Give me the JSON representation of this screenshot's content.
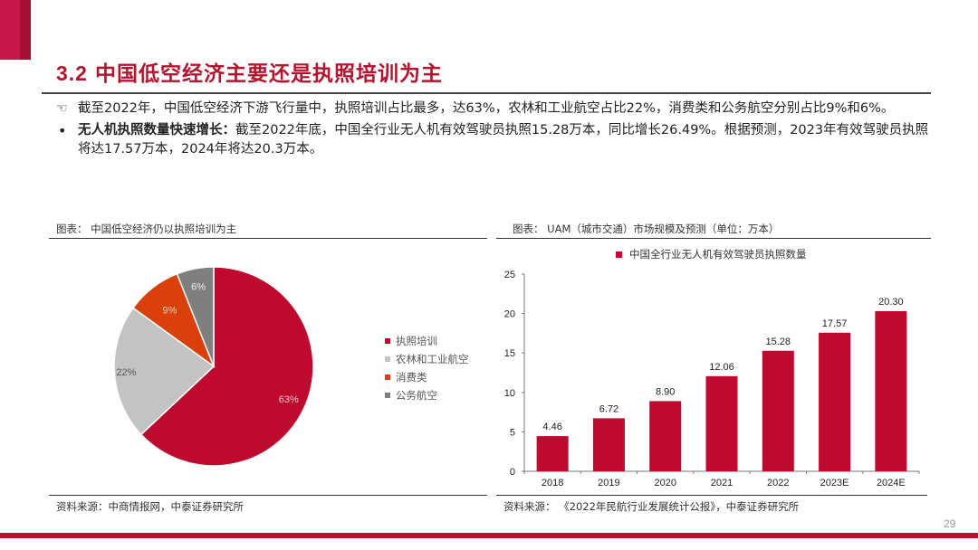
{
  "header": {
    "section_number": "3.2",
    "title": "中国低空经济主要还是执照培训为主"
  },
  "bullets": [
    {
      "marker": "hand-pointing-icon",
      "marker_glyph": "☜",
      "bold": "",
      "text": "截至2022年，中国低空经济下游飞行量中，执照培训占比最多，达63%，农林和工业航空占比22%，消费类和公务航空分别占比9%和6%。"
    },
    {
      "marker": "bullet-dot",
      "marker_glyph": "•",
      "bold": "无人机执照数量快速增长：",
      "text": "截至2022年底，中国全行业无人机有效驾驶员执照15.28万本，同比增长26.49%。根据预测，2023年有效驾驶员执照将达17.57万本，2024年将达20.3万本。"
    }
  ],
  "left_panel": {
    "title": "图表：  中国低空经济仍以执照培训为主",
    "source": "资料来源：中商情报网，中泰证券研究所"
  },
  "right_panel": {
    "title": "图表：  UAM（城市交通）市场规模及预测（单位：万本）",
    "source": "资料来源：  《2022年民航行业发展统计公报》，中泰证券研究所"
  },
  "page_number": "29",
  "colors": {
    "brand_red": "#be0a2e",
    "title_red": "#b5142e",
    "light_gray": "#c3c3c3",
    "orange": "#d9400b",
    "dark_gray": "#7f7f7f"
  },
  "chart_data": [
    {
      "type": "pie",
      "title": "中国低空经济仍以执照培训为主",
      "labels": [
        "执照培训",
        "农林和工业航空",
        "消费类",
        "公务航空"
      ],
      "values": [
        63,
        22,
        9,
        6
      ],
      "value_labels": [
        "63%",
        "22%",
        "9%",
        "6%"
      ],
      "colors": [
        "#be0a2e",
        "#c3c3c3",
        "#d9400b",
        "#7f7f7f"
      ],
      "legend_position": "right"
    },
    {
      "type": "bar",
      "title": "UAM（城市交通）市场规模及预测（单位：万本）",
      "categories": [
        "2018",
        "2019",
        "2020",
        "2021",
        "2022",
        "2023E",
        "2024E"
      ],
      "series": [
        {
          "name": "中国全行业无人机有效驾驶员执照数量",
          "values": [
            4.46,
            6.72,
            8.9,
            12.06,
            15.28,
            17.57,
            20.3
          ],
          "value_labels": [
            "4.46",
            "6.72",
            "8.90",
            "12.06",
            "15.28",
            "17.57",
            "20.30"
          ],
          "color": "#be0a2e"
        }
      ],
      "xlabel": "",
      "ylabel": "",
      "ylim": [
        0,
        25
      ],
      "yticks": [
        "0",
        "5",
        "10",
        "15",
        "20",
        "25"
      ],
      "grid": false,
      "legend_position": "top"
    }
  ]
}
